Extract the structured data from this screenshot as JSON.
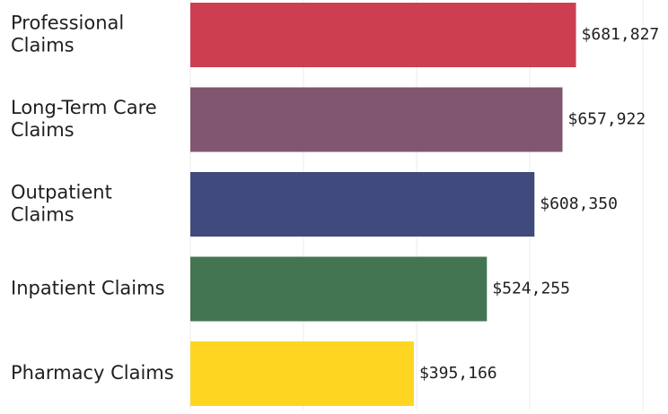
{
  "chart_data": {
    "type": "bar",
    "orientation": "horizontal",
    "categories": [
      [
        "Professional",
        "Claims"
      ],
      [
        "Long-Term Care",
        "Claims"
      ],
      [
        "Outpatient",
        "Claims"
      ],
      [
        "Inpatient Claims"
      ],
      [
        "Pharmacy Claims"
      ]
    ],
    "series": [
      {
        "values": [
          681827,
          657922,
          608350,
          524255,
          395166
        ],
        "value_labels": [
          "$681,827",
          "$657,922",
          "$608,350",
          "$524,255",
          "$395,166"
        ],
        "colors": [
          "#cd3f50",
          "#805670",
          "#414a7c",
          "#437553",
          "#fed622"
        ]
      }
    ],
    "xlim": [
      0,
      800000
    ],
    "x_gridlines": [
      0,
      200000,
      400000,
      600000,
      800000
    ],
    "grid": true,
    "title": "",
    "xlabel": "",
    "ylabel": "",
    "legend": "none"
  }
}
